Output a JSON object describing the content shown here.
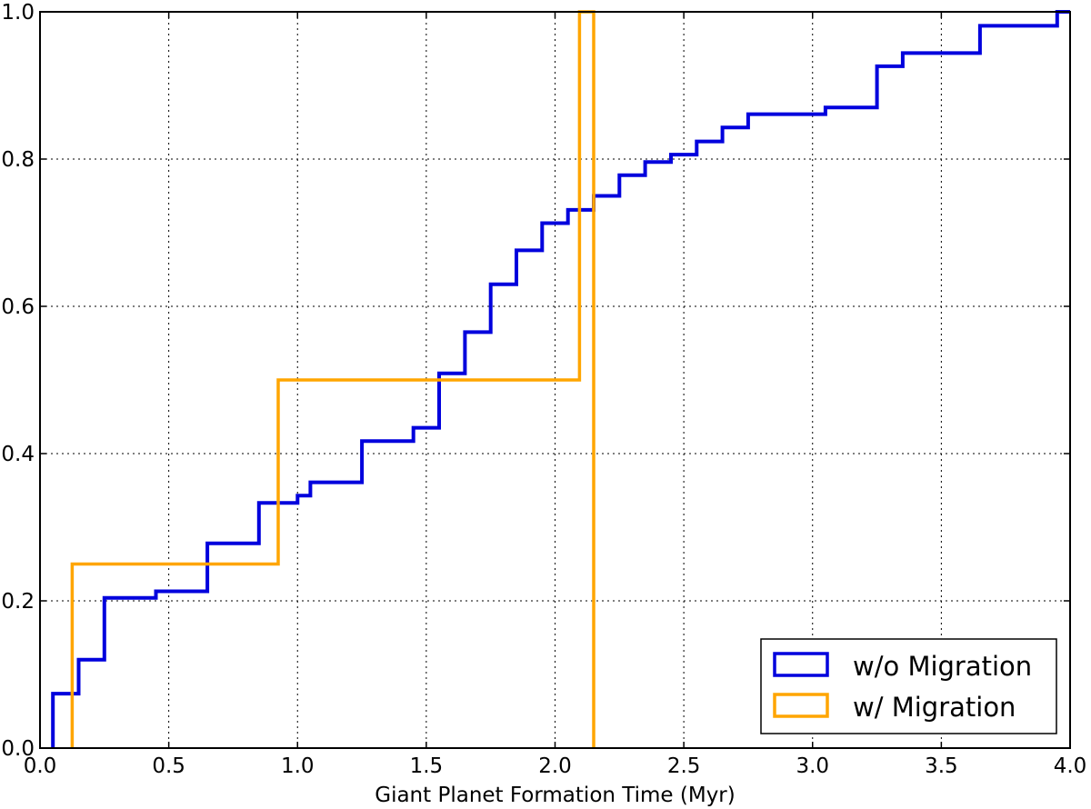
{
  "chart_data": {
    "type": "line",
    "step": true,
    "title": "",
    "xlabel": "Giant Planet Formation Time (Myr)",
    "ylabel": "",
    "xlim": [
      0.0,
      4.0
    ],
    "ylim": [
      0.0,
      1.0
    ],
    "xticks": [
      0.0,
      0.5,
      1.0,
      1.5,
      2.0,
      2.5,
      3.0,
      3.5,
      4.0
    ],
    "xtick_labels": [
      "0.0",
      "0.5",
      "1.0",
      "1.5",
      "2.0",
      "2.5",
      "3.0",
      "3.5",
      "4.0"
    ],
    "yticks": [
      0.0,
      0.2,
      0.4,
      0.6,
      0.8,
      1.0
    ],
    "ytick_labels": [
      "0.0",
      "0.2",
      "0.4",
      "0.6",
      "0.8",
      "1.0"
    ],
    "grid": true,
    "legend_position": "lower-right",
    "series": [
      {
        "name": "w/o Migration",
        "color": "#0000dd",
        "x": [
          0.05,
          0.05,
          0.15,
          0.15,
          0.25,
          0.25,
          0.45,
          0.45,
          0.65,
          0.65,
          0.85,
          0.85,
          1.0,
          1.0,
          1.05,
          1.05,
          1.25,
          1.25,
          1.45,
          1.45,
          1.55,
          1.55,
          1.65,
          1.65,
          1.75,
          1.75,
          1.85,
          1.85,
          1.95,
          1.95,
          2.05,
          2.05,
          2.15,
          2.15,
          2.25,
          2.25,
          2.35,
          2.35,
          2.45,
          2.45,
          2.55,
          2.55,
          2.65,
          2.65,
          2.75,
          2.75,
          3.05,
          3.05,
          3.25,
          3.25,
          3.35,
          3.35,
          3.65,
          3.65,
          3.95,
          3.95,
          4.0
        ],
        "y": [
          0.0,
          0.074,
          0.074,
          0.12,
          0.12,
          0.204,
          0.204,
          0.213,
          0.213,
          0.278,
          0.278,
          0.333,
          0.333,
          0.343,
          0.343,
          0.361,
          0.361,
          0.417,
          0.417,
          0.435,
          0.435,
          0.509,
          0.509,
          0.565,
          0.565,
          0.63,
          0.63,
          0.676,
          0.676,
          0.713,
          0.713,
          0.731,
          0.731,
          0.75,
          0.75,
          0.778,
          0.778,
          0.796,
          0.796,
          0.806,
          0.806,
          0.824,
          0.824,
          0.843,
          0.843,
          0.861,
          0.861,
          0.87,
          0.87,
          0.926,
          0.926,
          0.944,
          0.944,
          0.981,
          0.981,
          1.0,
          1.0
        ]
      },
      {
        "name": "w/ Migration",
        "color": "#ffa500",
        "x": [
          0.125,
          0.125,
          0.925,
          0.925,
          2.095,
          2.095,
          2.15,
          2.15
        ],
        "y": [
          0.0,
          0.25,
          0.25,
          0.5,
          0.5,
          1.0,
          1.0,
          0.0
        ]
      }
    ]
  }
}
